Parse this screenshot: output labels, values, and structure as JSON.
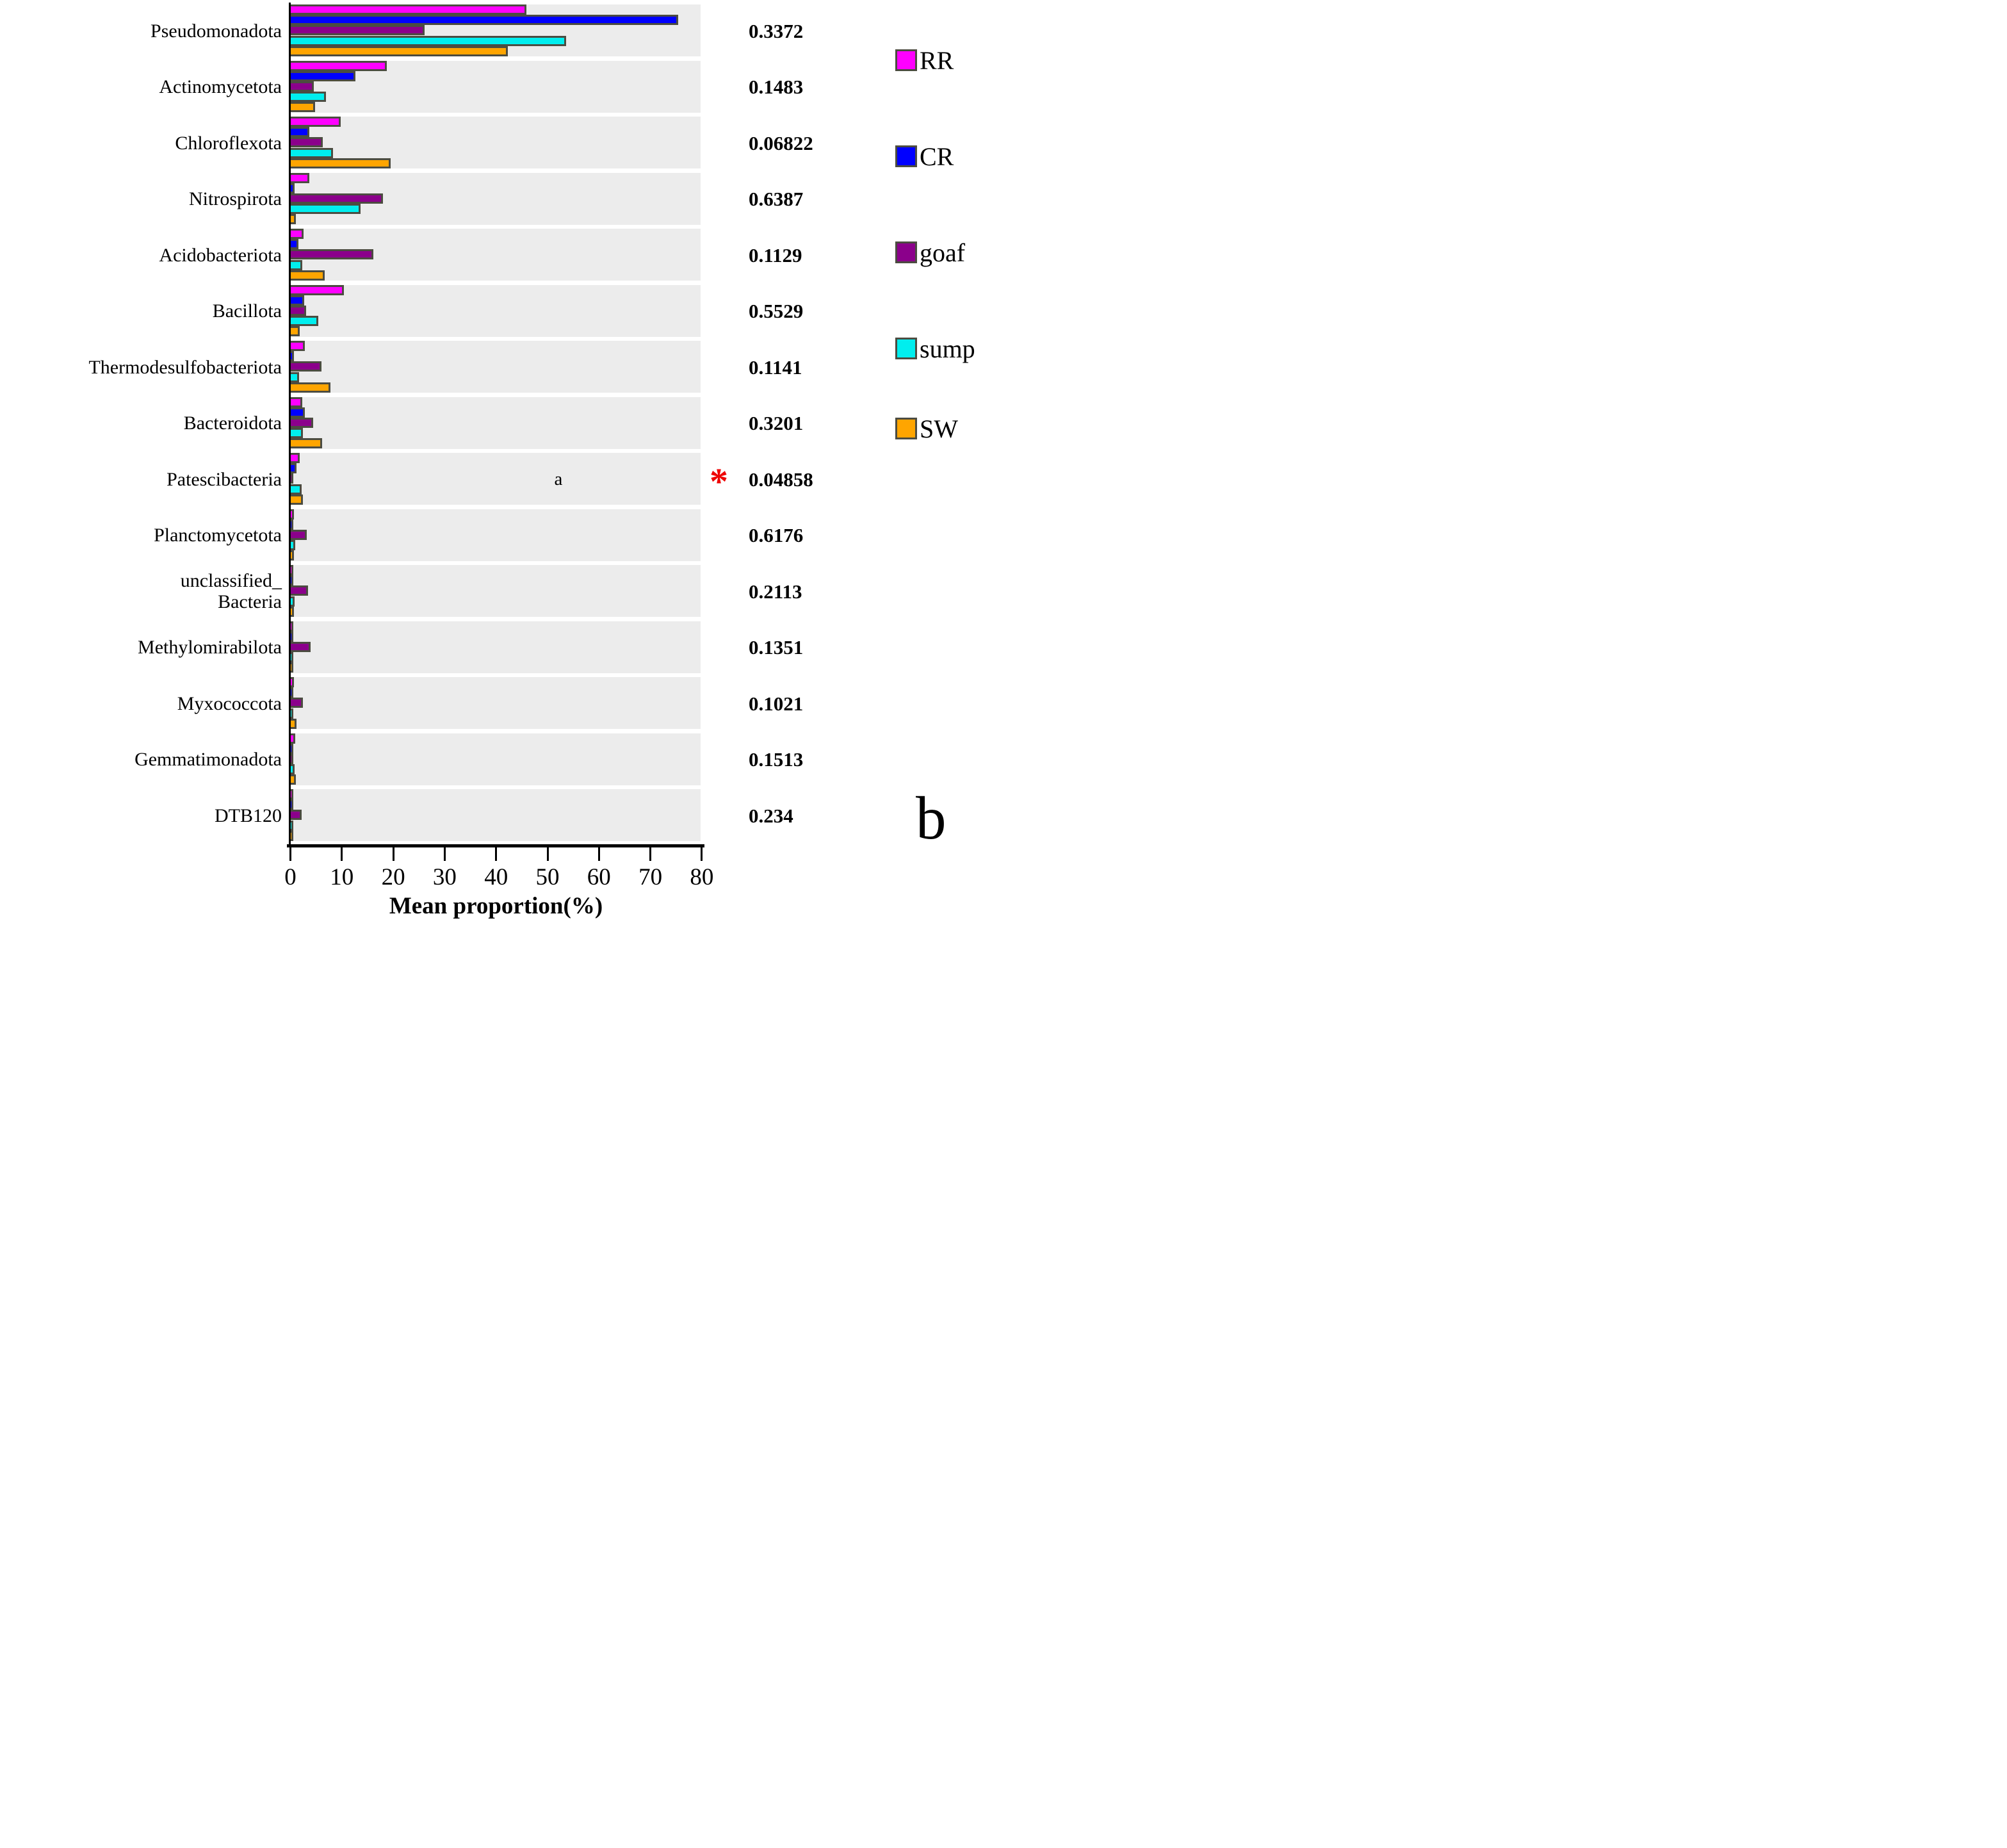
{
  "figure": {
    "panel_label": "b",
    "annotation_a": "a",
    "significance_marker": "*",
    "colors": {
      "RR": "#ff00ff",
      "CR": "#0000ff",
      "goaf": "#8b008b",
      "sump": "#00eeee",
      "SW": "#ffa500",
      "bar_outline": "#4c4c41",
      "row_band": "#ececec",
      "significance": "#ee0000"
    },
    "legend": {
      "position": "top-right",
      "items": [
        {
          "label": "RR",
          "color": "#ff00ff"
        },
        {
          "label": "CR",
          "color": "#0000ff"
        },
        {
          "label": "goaf",
          "color": "#8b008b"
        },
        {
          "label": "sump",
          "color": "#00eeee"
        },
        {
          "label": "SW",
          "color": "#ffa500"
        }
      ]
    }
  },
  "chart_data": {
    "type": "bar",
    "orientation": "horizontal",
    "title": "",
    "xlabel": "Mean proportion(%)",
    "ylabel": "",
    "xlim": [
      0,
      80
    ],
    "x_ticks": [
      0,
      10,
      20,
      30,
      40,
      50,
      60,
      70,
      80
    ],
    "grid": false,
    "categories": [
      "Pseudomonadota",
      "Actinomycetota",
      "Chloroflexota",
      "Nitrospirota",
      "Acidobacteriota",
      "Bacillota",
      "Thermodesulfobacteriota",
      "Bacteroidota",
      "Patescibacteria",
      "Planctomycetota",
      "unclassified_\nBacteria",
      "Methylomirabilota",
      "Myxococcota",
      "Gemmatimonadota",
      "DTB120"
    ],
    "series": [
      {
        "name": "RR",
        "color": "#ff00ff",
        "values": [
          45.5,
          18.3,
          9.4,
          3.2,
          2.1,
          10.0,
          2.4,
          1.9,
          1.4,
          0.3,
          0.15,
          0.1,
          0.2,
          0.55,
          0.1
        ]
      },
      {
        "name": "CR",
        "color": "#0000ff",
        "values": [
          75.0,
          12.2,
          3.2,
          0.4,
          1.1,
          2.3,
          0.3,
          2.4,
          0.7,
          0.1,
          0.1,
          0.05,
          0.05,
          0.05,
          0.05
        ]
      },
      {
        "name": "goaf",
        "color": "#8b008b",
        "values": [
          25.6,
          4.1,
          5.8,
          17.5,
          15.7,
          2.6,
          5.6,
          4.0,
          0.15,
          2.8,
          3.0,
          3.5,
          2.0,
          0.15,
          1.8
        ]
      },
      {
        "name": "sump",
        "color": "#00eeee",
        "values": [
          53.2,
          6.5,
          7.8,
          13.2,
          1.9,
          5.0,
          1.3,
          2.0,
          1.7,
          0.55,
          0.4,
          0.15,
          0.1,
          0.4,
          0.1
        ]
      },
      {
        "name": "SW",
        "color": "#ffa500",
        "values": [
          41.8,
          4.4,
          19.0,
          0.6,
          6.2,
          1.4,
          7.3,
          5.7,
          2.0,
          0.2,
          0.3,
          0.1,
          0.75,
          0.65,
          0.1
        ]
      }
    ],
    "p_values": [
      "0.3372",
      "0.1483",
      "0.06822",
      "0.6387",
      "0.1129",
      "0.5529",
      "0.1141",
      "0.3201",
      "0.04858",
      "0.6176",
      "0.2113",
      "0.1351",
      "0.1021",
      "0.1513",
      "0.234"
    ],
    "significant_categories": [
      "Patescibacteria"
    ],
    "annotations": [
      {
        "text": "a",
        "category": "Patescibacteria",
        "x_percent": 51.5
      }
    ],
    "legend_position": "top-right"
  }
}
